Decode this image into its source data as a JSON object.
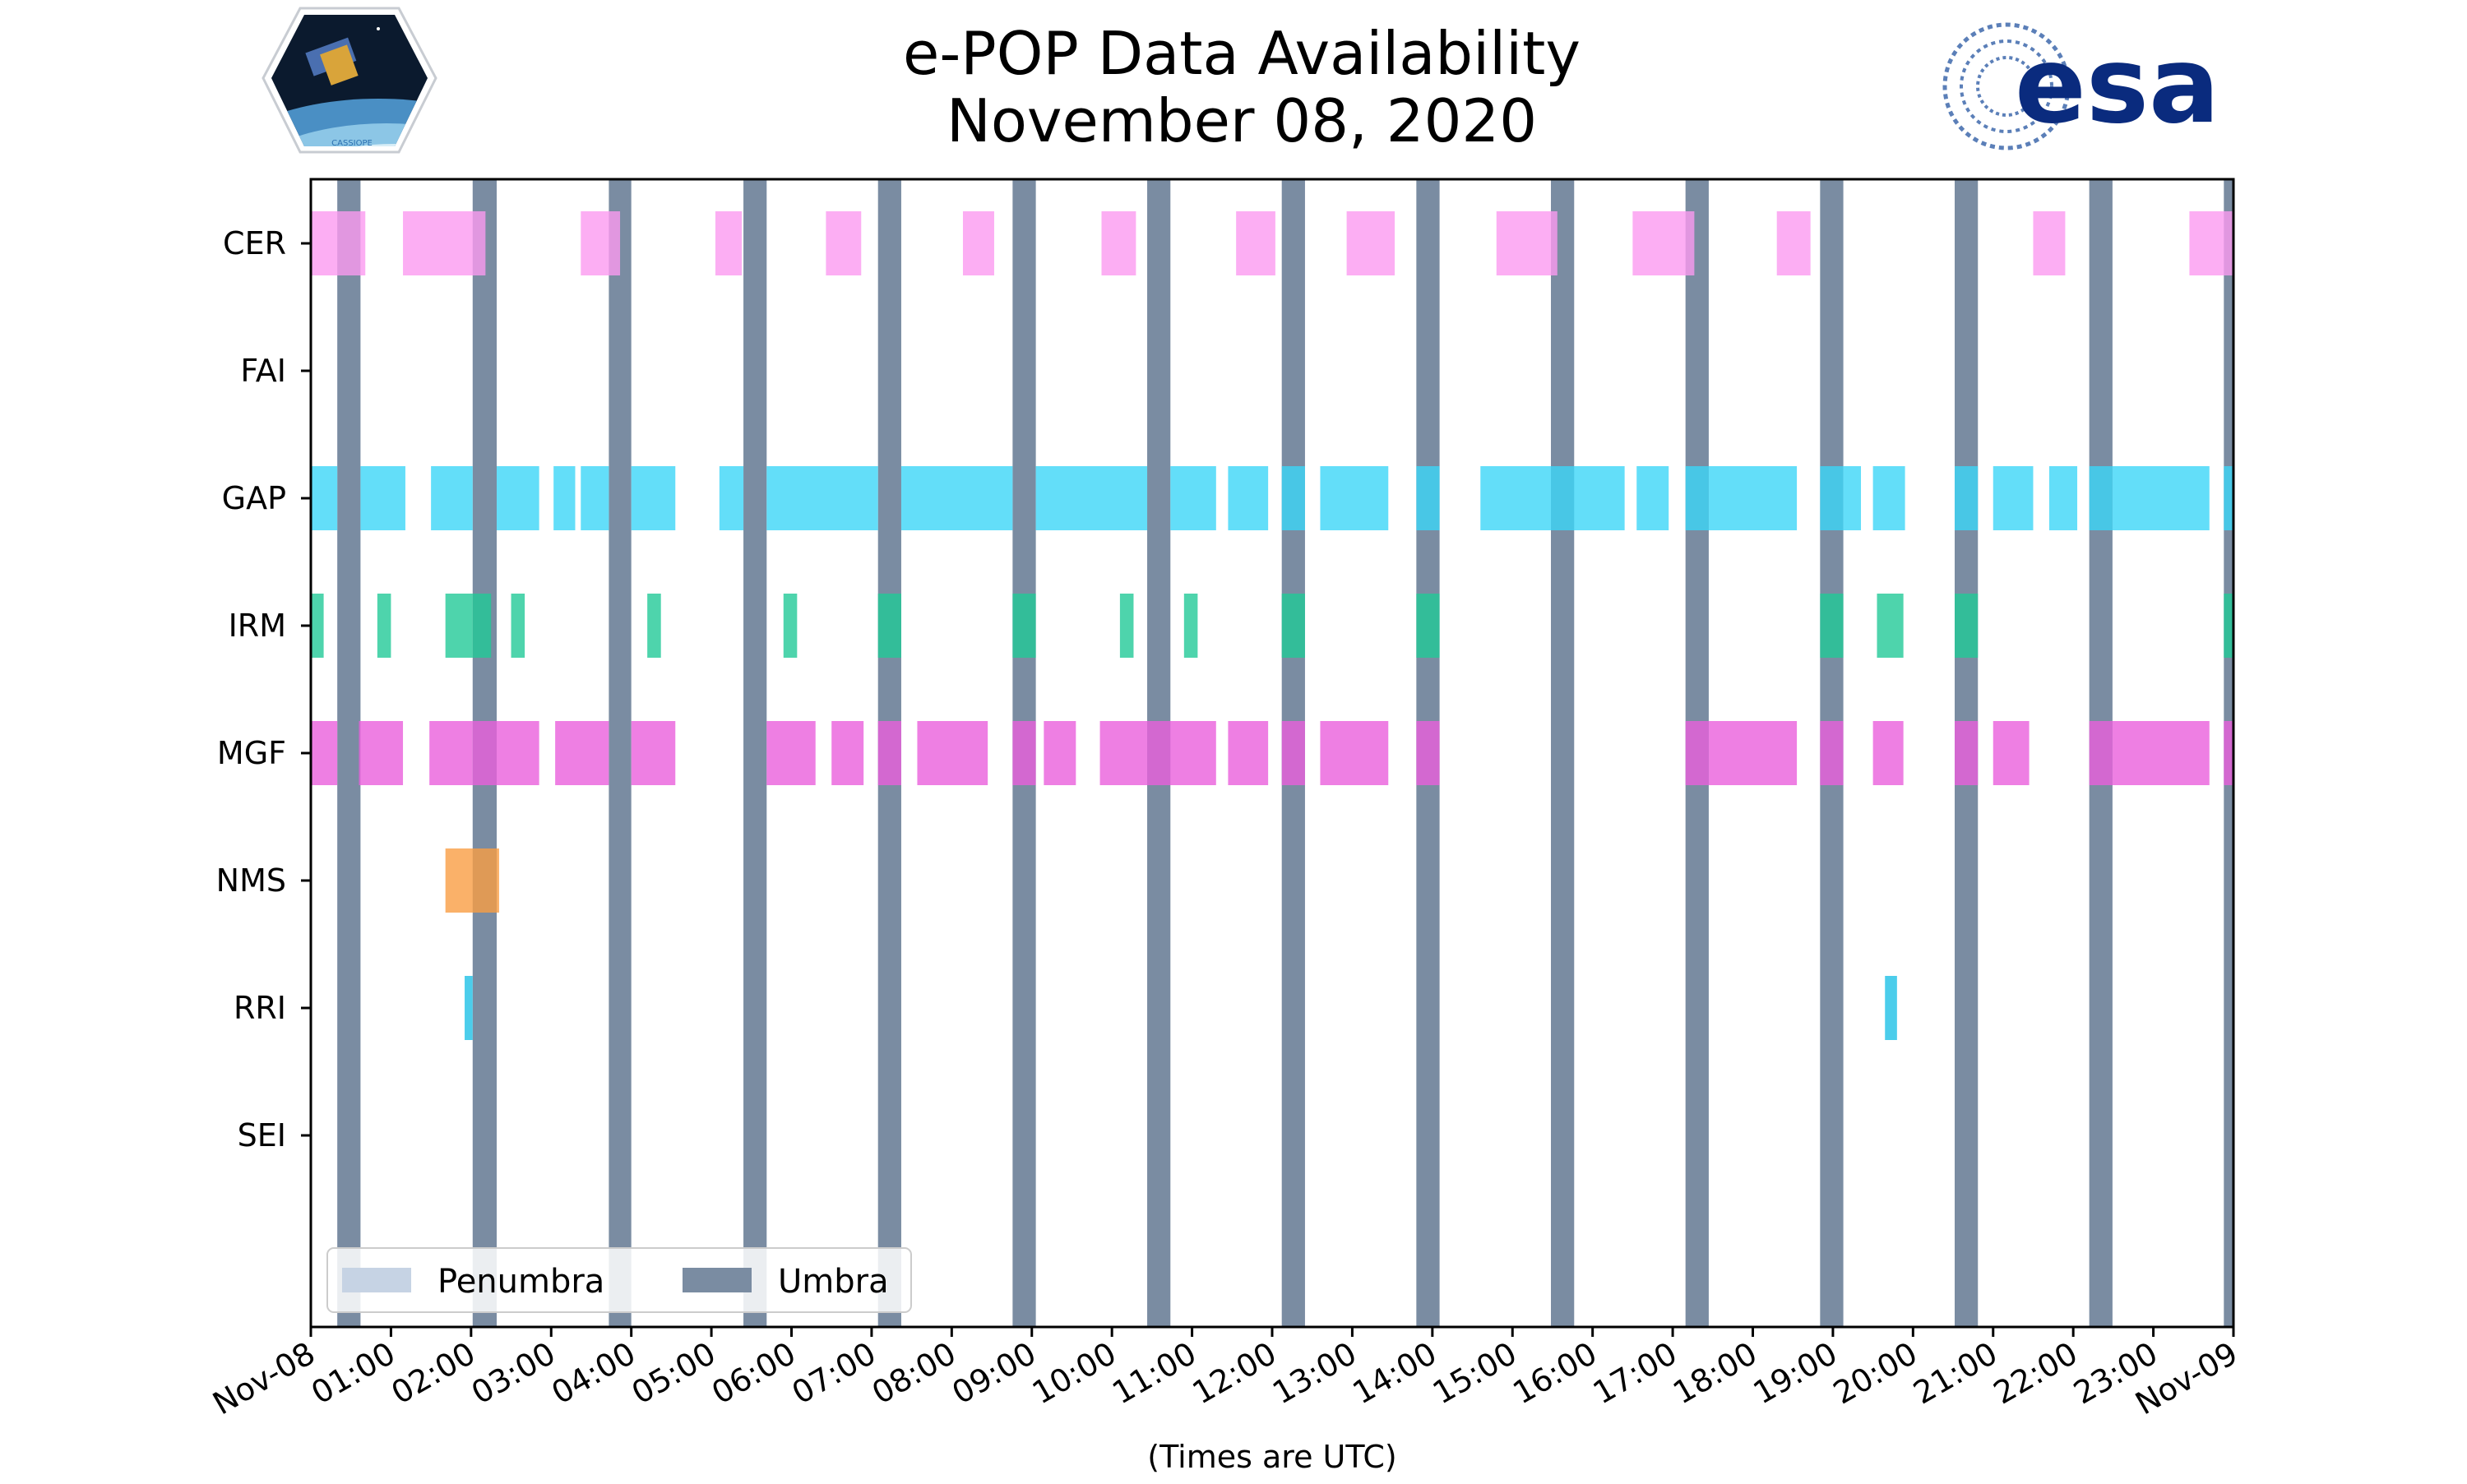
{
  "chart_data": {
    "type": "timeline",
    "title": "e-POP Data Availability",
    "subtitle": "November 08, 2020",
    "xlabel": "(Times are UTC)",
    "xlim_hours": [
      0,
      24
    ],
    "x_ticks": [
      "Nov-08",
      "01:00",
      "02:00",
      "03:00",
      "04:00",
      "05:00",
      "06:00",
      "07:00",
      "08:00",
      "09:00",
      "10:00",
      "11:00",
      "12:00",
      "13:00",
      "14:00",
      "15:00",
      "16:00",
      "17:00",
      "18:00",
      "19:00",
      "20:00",
      "21:00",
      "22:00",
      "23:00",
      "Nov-09"
    ],
    "legend": {
      "placement": "lower-left",
      "entries": [
        {
          "label": "Penumbra",
          "color": "#c6d3e4"
        },
        {
          "label": "Umbra",
          "color": "#7a8ca2"
        }
      ]
    },
    "logos": {
      "left": {
        "text": "CASSIOPE"
      },
      "right": {
        "text": "esa"
      }
    },
    "umbra_intervals": [
      [
        0.33,
        0.62
      ],
      [
        2.02,
        2.32
      ],
      [
        3.72,
        4.0
      ],
      [
        5.4,
        5.69
      ],
      [
        7.08,
        7.37
      ],
      [
        8.76,
        9.05
      ],
      [
        10.44,
        10.73
      ],
      [
        12.12,
        12.41
      ],
      [
        13.8,
        14.09
      ],
      [
        15.48,
        15.77
      ],
      [
        17.16,
        17.45
      ],
      [
        18.84,
        19.13
      ],
      [
        20.52,
        20.81
      ],
      [
        22.2,
        22.49
      ],
      [
        23.88,
        24.0
      ]
    ],
    "instruments": [
      {
        "name": "CER",
        "color": "#fb9af0",
        "intervals": [
          [
            0,
            0.68
          ],
          [
            1.15,
            2.18
          ],
          [
            3.37,
            3.86
          ],
          [
            5.05,
            5.38
          ],
          [
            6.43,
            6.87
          ],
          [
            8.14,
            8.53
          ],
          [
            9.87,
            10.3
          ],
          [
            11.55,
            12.04
          ],
          [
            12.93,
            13.53
          ],
          [
            14.8,
            15.56
          ],
          [
            16.5,
            17.27
          ],
          [
            18.3,
            18.72
          ],
          [
            21.5,
            21.9
          ],
          [
            23.45,
            24.0
          ]
        ]
      },
      {
        "name": "FAI",
        "color": "#00a0ff",
        "intervals": []
      },
      {
        "name": "GAP",
        "color": "#3cd6f8",
        "intervals": [
          [
            0,
            0.33
          ],
          [
            0.62,
            1.18
          ],
          [
            1.5,
            2.02
          ],
          [
            2.32,
            2.85
          ],
          [
            3.03,
            3.3
          ],
          [
            3.37,
            3.72
          ],
          [
            4.0,
            4.55
          ],
          [
            5.1,
            5.4
          ],
          [
            5.69,
            7.08
          ],
          [
            7.37,
            8.76
          ],
          [
            9.05,
            10.44
          ],
          [
            10.73,
            11.3
          ],
          [
            11.45,
            11.95
          ],
          [
            12.12,
            12.41
          ],
          [
            12.6,
            13.45
          ],
          [
            13.8,
            14.09
          ],
          [
            14.6,
            16.4
          ],
          [
            16.55,
            16.95
          ],
          [
            17.16,
            17.45
          ],
          [
            17.45,
            18.55
          ],
          [
            18.84,
            19.13
          ],
          [
            19.13,
            19.35
          ],
          [
            19.5,
            19.9
          ],
          [
            20.52,
            20.81
          ],
          [
            21.0,
            21.5
          ],
          [
            21.7,
            22.05
          ],
          [
            22.2,
            22.49
          ],
          [
            22.49,
            23.7
          ],
          [
            23.88,
            24.0
          ]
        ]
      },
      {
        "name": "IRM",
        "color": "#22c997",
        "intervals": [
          [
            0,
            0.16
          ],
          [
            0.83,
            1.0
          ],
          [
            1.68,
            2.02
          ],
          [
            2.02,
            2.25
          ],
          [
            2.5,
            2.67
          ],
          [
            4.2,
            4.37
          ],
          [
            5.9,
            6.07
          ],
          [
            7.08,
            7.37
          ],
          [
            8.76,
            9.05
          ],
          [
            10.1,
            10.27
          ],
          [
            10.9,
            11.07
          ],
          [
            12.12,
            12.41
          ],
          [
            13.8,
            14.09
          ],
          [
            18.84,
            19.13
          ],
          [
            19.55,
            19.88
          ],
          [
            20.52,
            20.81
          ],
          [
            23.88,
            24.0
          ]
        ]
      },
      {
        "name": "MGF",
        "color": "#ea5fdc",
        "intervals": [
          [
            0,
            0.33
          ],
          [
            0.6,
            1.15
          ],
          [
            1.48,
            2.02
          ],
          [
            2.02,
            2.85
          ],
          [
            3.05,
            3.72
          ],
          [
            4.0,
            4.55
          ],
          [
            5.69,
            6.3
          ],
          [
            6.5,
            6.9
          ],
          [
            7.08,
            7.37
          ],
          [
            7.57,
            8.45
          ],
          [
            8.76,
            9.05
          ],
          [
            9.15,
            9.55
          ],
          [
            9.85,
            10.44
          ],
          [
            10.44,
            11.3
          ],
          [
            11.45,
            11.95
          ],
          [
            12.12,
            12.41
          ],
          [
            12.6,
            13.45
          ],
          [
            13.8,
            14.09
          ],
          [
            17.16,
            17.45
          ],
          [
            17.45,
            18.55
          ],
          [
            18.84,
            19.13
          ],
          [
            19.5,
            19.88
          ],
          [
            20.52,
            20.81
          ],
          [
            21.0,
            21.45
          ],
          [
            22.2,
            22.49
          ],
          [
            22.49,
            23.7
          ],
          [
            23.88,
            24.0
          ]
        ]
      },
      {
        "name": "NMS",
        "color": "#f99d43",
        "intervals": [
          [
            1.68,
            2.35
          ]
        ]
      },
      {
        "name": "RRI",
        "color": "#1ec0e6",
        "intervals": [
          [
            1.92,
            2.02
          ],
          [
            19.65,
            19.8
          ]
        ]
      },
      {
        "name": "SEI",
        "color": "#888888",
        "intervals": []
      }
    ]
  }
}
